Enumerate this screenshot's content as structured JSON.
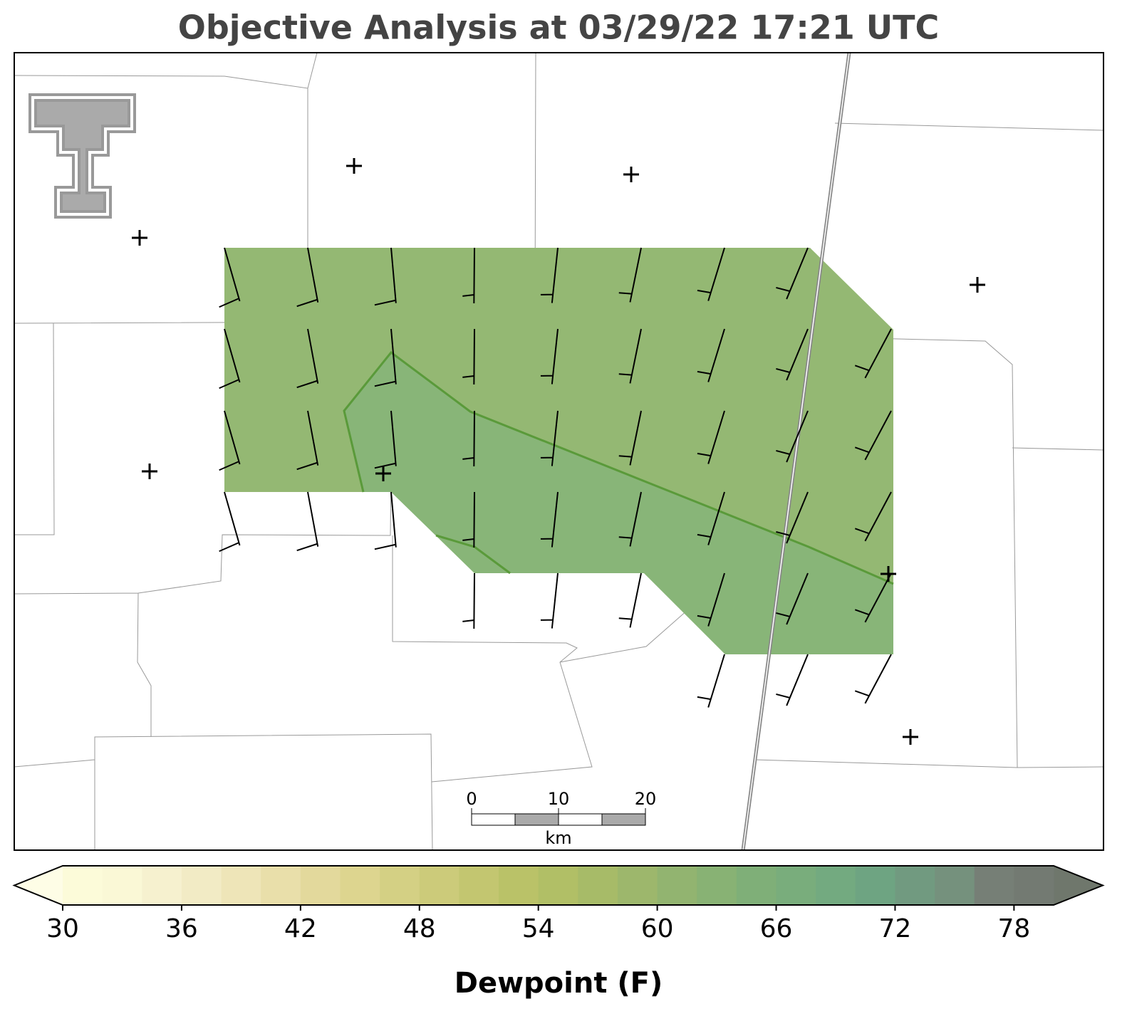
{
  "title": "Objective Analysis at 03/29/22 17:21 UTC",
  "colorbar": {
    "label": "Dewpoint (F)",
    "clim": [
      30,
      80
    ],
    "ticks": [
      30,
      36,
      42,
      48,
      54,
      60,
      66,
      72,
      78
    ],
    "colors": [
      "#fcfbd9",
      "#faf8d6",
      "#f6f1cf",
      "#f2ebc5",
      "#eee5b8",
      "#e9dfaa",
      "#e3d99c",
      "#ddd58f",
      "#d4d084",
      "#cccb7a",
      "#c3c670",
      "#bac268",
      "#b1bf66",
      "#a7bb68",
      "#9db76c",
      "#92b470",
      "#88b274",
      "#7faf78",
      "#79ad7c",
      "#73aa80",
      "#6ea482",
      "#719a80",
      "#75917d",
      "#767f76",
      "#737a72"
    ],
    "under_color": "#fefde6",
    "over_color": "#6f776c"
  },
  "scale_bar": {
    "ticks": [
      0,
      10,
      20
    ],
    "unit": "km"
  }
}
